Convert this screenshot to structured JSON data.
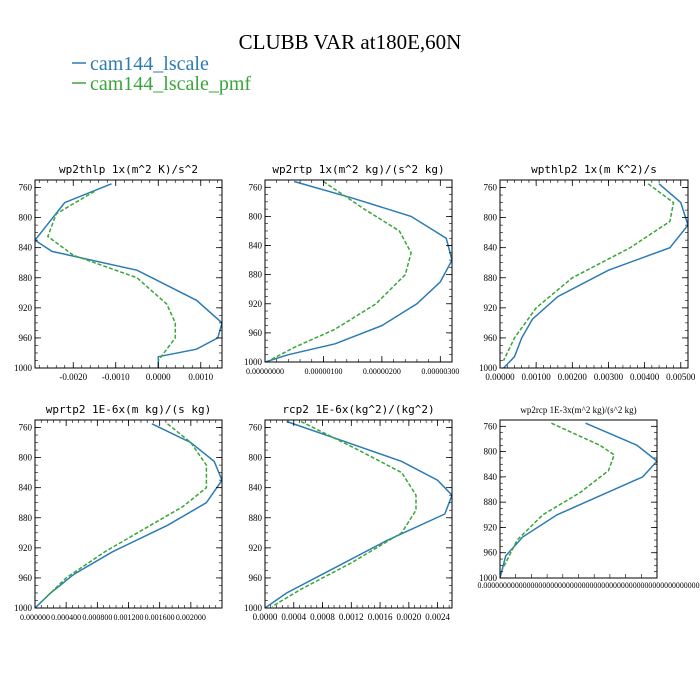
{
  "figure": {
    "title": "CLUBB VAR at180E,60N",
    "legend": [
      {
        "label": "cam144_lscale",
        "color": "#2b7bb5"
      },
      {
        "label": "cam144_lscale_pmf",
        "color": "#3aa53a"
      }
    ]
  },
  "chart_data": [
    {
      "type": "line",
      "title": "wp2thlp  1x(m^2 K)/s^2",
      "xlim": [
        -0.0029,
        0.0015
      ],
      "ylim": [
        1000,
        750
      ],
      "xticks": [
        -0.002,
        -0.001,
        0,
        0.001
      ],
      "xtick_labels": [
        "-0.0020",
        "-0.0010",
        "0.0000",
        "0.0010"
      ],
      "yticks": [
        760,
        800,
        840,
        880,
        920,
        960,
        1000
      ],
      "series": [
        {
          "name": "cam144_lscale",
          "x": [
            -0.0011,
            -0.0022,
            -0.0029,
            -0.0025,
            -0.0005,
            0.0009,
            0.0015,
            0.0014,
            0.0009,
            0.0,
            0.0
          ],
          "y": [
            755,
            780,
            830,
            845,
            870,
            910,
            940,
            960,
            975,
            985,
            1000
          ]
        },
        {
          "name": "cam144_lscale_pmf",
          "x": [
            -0.0015,
            -0.0024,
            -0.0026,
            -0.002,
            -0.0005,
            0.0002,
            0.0004,
            0.0004,
            0.0002,
            0.0
          ],
          "y": [
            765,
            795,
            825,
            850,
            880,
            915,
            940,
            960,
            975,
            990
          ]
        }
      ]
    },
    {
      "type": "line",
      "title": "wp2rtp  1x(m^2 kg)/(s^2 kg)",
      "xlim": [
        0,
        3.2e-06
      ],
      "ylim": [
        1000,
        750
      ],
      "xticks": [
        0,
        1e-06,
        2e-06,
        3e-06
      ],
      "xtick_labels": [
        "0.00000000",
        "0.00000100",
        "0.00000200",
        "0.00000300"
      ],
      "yticks": [
        760,
        800,
        840,
        880,
        920,
        960,
        1000
      ],
      "series": [
        {
          "name": "cam144_lscale",
          "x": [
            5e-07,
            1.5e-06,
            2.5e-06,
            3.1e-06,
            3.2e-06,
            3e-06,
            2.6e-06,
            2e-06,
            1.2e-06,
            4e-07,
            0.0
          ],
          "y": [
            752,
            775,
            800,
            830,
            860,
            890,
            920,
            950,
            975,
            990,
            1000
          ]
        },
        {
          "name": "cam144_lscale_pmf",
          "x": [
            1e-06,
            1.7e-06,
            2.3e-06,
            2.5e-06,
            2.4e-06,
            1.9e-06,
            1.2e-06,
            5e-07,
            1e-07
          ],
          "y": [
            752,
            790,
            820,
            850,
            880,
            920,
            955,
            980,
            997
          ]
        }
      ]
    },
    {
      "type": "line",
      "title": "wpthlp2  1x(m K^2)/s",
      "xlim": [
        0,
        0.0052
      ],
      "ylim": [
        1000,
        750
      ],
      "xticks": [
        0,
        0.001,
        0.002,
        0.003,
        0.004,
        0.005
      ],
      "xtick_labels": [
        "0.00000",
        "0.00100",
        "0.00200",
        "0.00300",
        "0.00400",
        "0.00500"
      ],
      "yticks": [
        760,
        800,
        840,
        880,
        920,
        960,
        1000
      ],
      "series": [
        {
          "name": "cam144_lscale",
          "x": [
            0.0044,
            0.005,
            0.0052,
            0.0047,
            0.003,
            0.0016,
            0.0009,
            0.0006,
            0.0004,
            0.0001
          ],
          "y": [
            755,
            780,
            810,
            840,
            870,
            905,
            935,
            960,
            985,
            1000
          ]
        },
        {
          "name": "cam144_lscale_pmf",
          "x": [
            0.0041,
            0.0048,
            0.0047,
            0.0036,
            0.002,
            0.001,
            0.0004,
            0.0001
          ],
          "y": [
            755,
            780,
            805,
            840,
            880,
            920,
            960,
            990
          ]
        }
      ]
    },
    {
      "type": "line",
      "title": "wprtp2  1E-6x(m kg)/(s kg)",
      "xlim": [
        0,
        0.0024
      ],
      "ylim": [
        1000,
        750
      ],
      "xticks": [
        0,
        0.0004,
        0.0008,
        0.0012,
        0.0016,
        0.002
      ],
      "xtick_labels": [
        "0.000000",
        "0.000400",
        "0.000800",
        "0.001200",
        "0.001600",
        "0.002000"
      ],
      "yticks": [
        760,
        800,
        840,
        880,
        920,
        960,
        1000
      ],
      "series": [
        {
          "name": "cam144_lscale",
          "x": [
            0.0015,
            0.002,
            0.0023,
            0.0024,
            0.0022,
            0.0017,
            0.001,
            0.0005,
            0.0002,
            0.0
          ],
          "y": [
            755,
            780,
            805,
            830,
            860,
            890,
            925,
            955,
            980,
            1000
          ]
        },
        {
          "name": "cam144_lscale_pmf",
          "x": [
            0.0017,
            0.002,
            0.0022,
            0.0022,
            0.0019,
            0.0014,
            0.0009,
            0.0004,
            0.0001
          ],
          "y": [
            755,
            780,
            810,
            840,
            865,
            895,
            925,
            960,
            990
          ]
        }
      ]
    },
    {
      "type": "line",
      "title": "rcp2  1E-6x(kg^2)/(kg^2)",
      "xlim": [
        0,
        0.0026
      ],
      "ylim": [
        1000,
        750
      ],
      "xticks": [
        0,
        0.0004,
        0.0008,
        0.0012,
        0.0016,
        0.002,
        0.0024
      ],
      "xtick_labels": [
        "0.0000",
        "0.0004",
        "0.0008",
        "0.0012",
        "0.0016",
        "0.0020",
        "0.0024"
      ],
      "yticks": [
        760,
        800,
        840,
        880,
        920,
        960,
        1000
      ],
      "series": [
        {
          "name": "cam144_lscale",
          "x": [
            0.0003,
            0.001,
            0.0019,
            0.0024,
            0.0026,
            0.0025,
            0.0017,
            0.0009,
            0.0003,
            0.0
          ],
          "y": [
            752,
            775,
            805,
            830,
            850,
            875,
            910,
            950,
            980,
            1000
          ]
        },
        {
          "name": "cam144_lscale_pmf",
          "x": [
            0.0005,
            0.0013,
            0.0019,
            0.0021,
            0.0021,
            0.0019,
            0.0012,
            0.0005,
            0.0001
          ],
          "y": [
            752,
            790,
            820,
            850,
            870,
            900,
            940,
            975,
            998
          ]
        }
      ]
    },
    {
      "type": "line",
      "title": "wp2rcp  1E-3x(m^2 kg)/(s^2 kg)",
      "xlim": [
        0,
        5.5e-19
      ],
      "ylim": [
        1000,
        750
      ],
      "xtick_labels": [
        "0.0000000000000000000000000000000000000000000000000000000"
      ],
      "yticks": [
        760,
        800,
        840,
        880,
        920,
        960,
        1000
      ],
      "series": [
        {
          "name": "cam144_lscale",
          "x": [
            3e-19,
            4.8e-19,
            5.5e-19,
            5e-19,
            3.5e-19,
            2e-19,
            8e-20,
            2e-20,
            0.0
          ],
          "y": [
            755,
            790,
            815,
            840,
            870,
            900,
            935,
            965,
            1000
          ]
        },
        {
          "name": "cam144_lscale_pmf",
          "x": [
            1.8e-19,
            3.5e-19,
            4e-19,
            3.8e-19,
            2.8e-19,
            1.5e-19,
            6e-20,
            1e-20
          ],
          "y": [
            755,
            790,
            805,
            830,
            865,
            900,
            940,
            985
          ]
        }
      ]
    }
  ]
}
